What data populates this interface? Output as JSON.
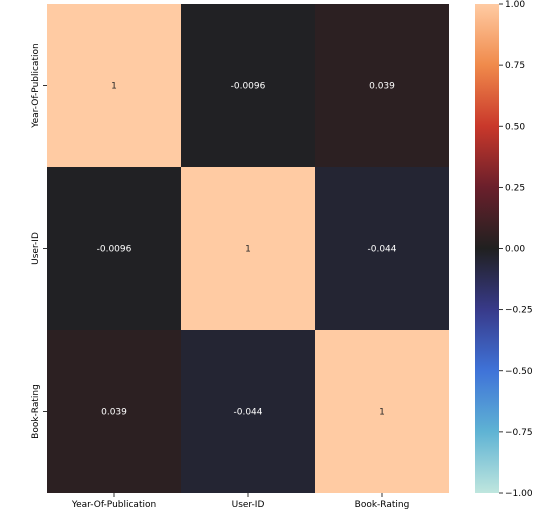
{
  "chart_data": {
    "type": "heatmap",
    "title": "",
    "xlabel": "",
    "ylabel": "",
    "x_categories": [
      "Year-Of-Publication",
      "User-ID",
      "Book-Rating"
    ],
    "y_categories": [
      "Year-Of-Publication",
      "User-ID",
      "Book-Rating"
    ],
    "values": [
      [
        1,
        -0.0096,
        0.039
      ],
      [
        -0.0096,
        1,
        -0.044
      ],
      [
        0.039,
        -0.044,
        1
      ]
    ],
    "cell_labels": [
      [
        "1",
        "-0.0096",
        "0.039"
      ],
      [
        "-0.0096",
        "1",
        "-0.044"
      ],
      [
        "0.039",
        "-0.044",
        "1"
      ]
    ],
    "colorbar": {
      "vmin": -1.0,
      "vmax": 1.0,
      "ticks": [
        1.0,
        0.75,
        0.5,
        0.25,
        0.0,
        -0.25,
        -0.5,
        -0.75,
        -1.0
      ],
      "tick_labels": [
        "1.00",
        "0.75",
        "0.50",
        "0.25",
        "0.00",
        "−0.25",
        "−0.50",
        "−0.75",
        "−1.00"
      ],
      "colormap": "icefire",
      "color_stops": [
        "#bfe6de",
        "#5fb3d4",
        "#3f73d8",
        "#383a8a",
        "#202020",
        "#6a1f2b",
        "#c9382b",
        "#f08a4b",
        "#ffcba3"
      ]
    },
    "grid": false
  }
}
